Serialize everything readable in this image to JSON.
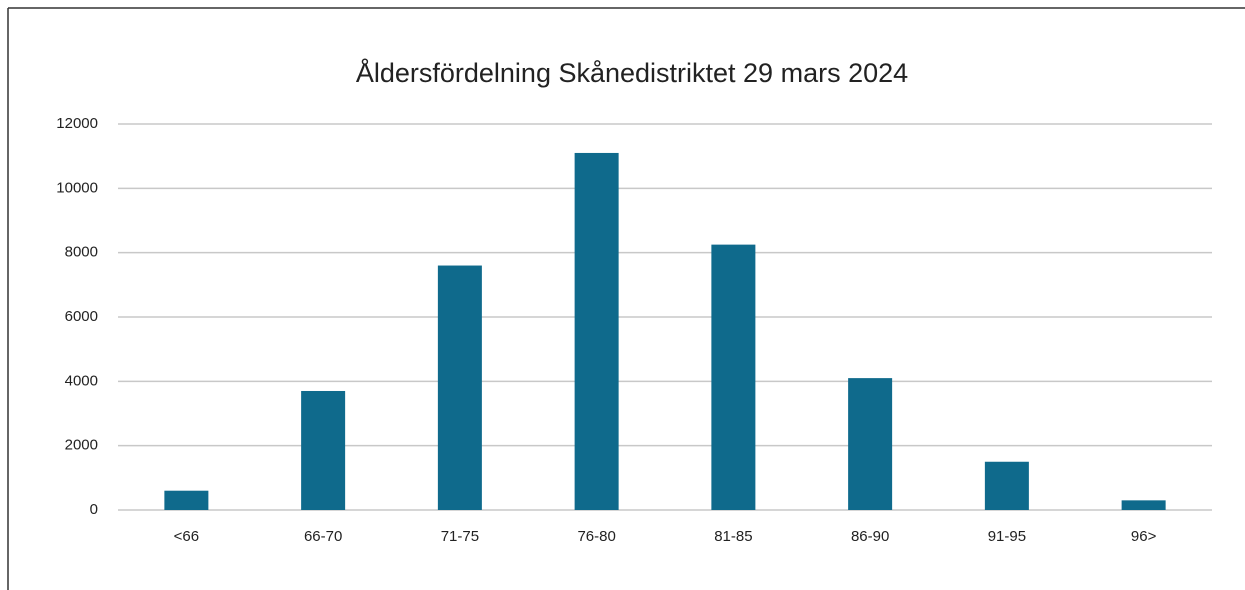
{
  "chart_data": {
    "type": "bar",
    "title": "Åldersfördelning Skånedistriktet 29 mars 2024",
    "categories": [
      "<66",
      "66-70",
      "71-75",
      "76-80",
      "81-85",
      "86-90",
      "91-95",
      "96>"
    ],
    "values": [
      600,
      3700,
      7600,
      11100,
      8250,
      4100,
      1500,
      300
    ],
    "color": "#0f6a8c",
    "ylim": [
      0,
      12000
    ],
    "yticks": [
      0,
      2000,
      4000,
      6000,
      8000,
      10000,
      12000
    ],
    "grid": true
  }
}
